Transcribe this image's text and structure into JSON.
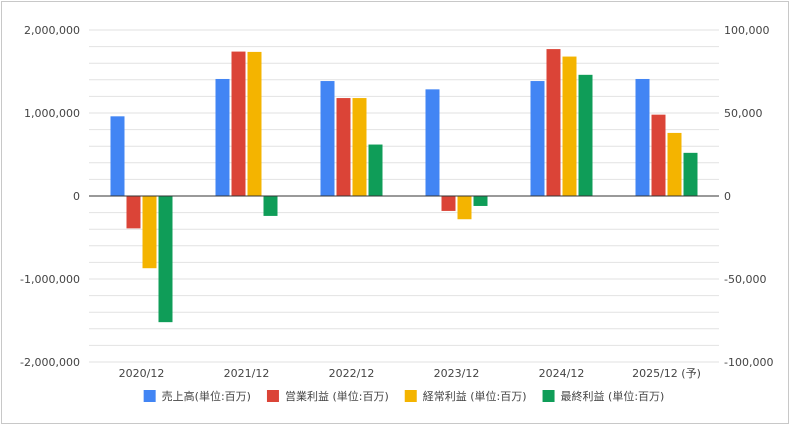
{
  "chart_data": {
    "type": "bar",
    "categories": [
      "2020/12",
      "2021/12",
      "2022/12",
      "2023/12",
      "2024/12",
      "2025/12 (予)"
    ],
    "series": [
      {
        "name": "売上高(単位:百万)",
        "axis": "left",
        "color": "#4285f4",
        "values": [
          960000,
          1410000,
          1385000,
          1285000,
          1385000,
          1410000
        ]
      },
      {
        "name": "営業利益 (単位:百万)",
        "axis": "right",
        "color": "#db4437",
        "values": [
          -19500,
          87000,
          59000,
          -9000,
          88500,
          49000
        ]
      },
      {
        "name": "経常利益 (単位:百万)",
        "axis": "right",
        "color": "#f4b400",
        "values": [
          -43500,
          86800,
          59000,
          -14000,
          84000,
          38000
        ]
      },
      {
        "name": "最終利益 (単位:百万)",
        "axis": "right",
        "color": "#0f9d58",
        "values": [
          -76000,
          -12000,
          31000,
          -6000,
          73000,
          26000
        ]
      }
    ],
    "y_left": {
      "range": [
        -2000000,
        2000000
      ],
      "ticks": [
        2000000,
        1000000,
        0,
        -1000000,
        -2000000
      ],
      "tick_labels": [
        "2,000,000",
        "1,000,000",
        "0",
        "-1,000,000",
        "-2,000,000"
      ]
    },
    "y_right": {
      "range": [
        -100000,
        100000
      ],
      "ticks": [
        100000,
        50000,
        0,
        -50000,
        -100000
      ],
      "tick_labels": [
        "100,000",
        "50,000",
        "0",
        "-50,000",
        "-100,000"
      ]
    },
    "grid": true,
    "legend_position": "bottom"
  }
}
